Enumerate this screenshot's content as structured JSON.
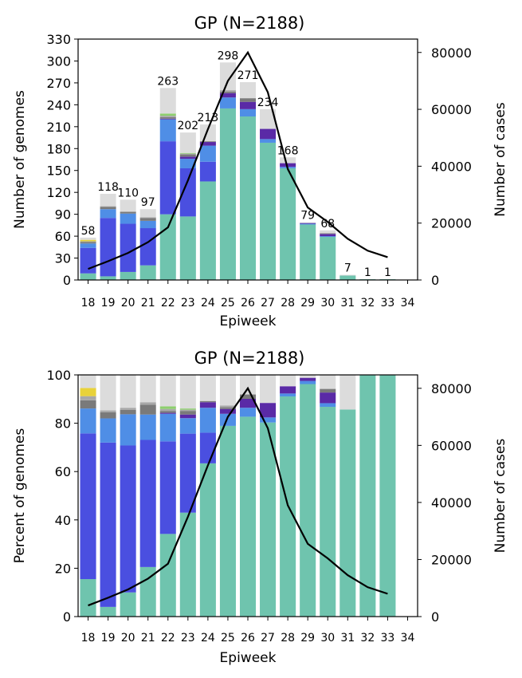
{
  "chart_data": [
    {
      "type": "bar",
      "stacked": true,
      "title": "GP (N=2188)",
      "xlabel": "Epiweek",
      "ylabel": "Number of genomes",
      "y2label": "Number of cases",
      "ylim": [
        0,
        330
      ],
      "y2lim": [
        0,
        84700
      ],
      "yticks": [
        0,
        30,
        60,
        90,
        120,
        150,
        180,
        210,
        240,
        270,
        300,
        330
      ],
      "y2ticks": [
        0,
        20000,
        40000,
        60000,
        80000
      ],
      "categories": [
        "18",
        "19",
        "20",
        "21",
        "22",
        "23",
        "24",
        "25",
        "26",
        "27",
        "28",
        "29",
        "30",
        "31",
        "32",
        "33",
        "34"
      ],
      "totals": [
        58,
        118,
        110,
        97,
        263,
        202,
        213,
        298,
        271,
        234,
        168,
        79,
        68,
        7,
        1,
        1,
        0
      ],
      "total_labels": [
        "58",
        "118",
        "110",
        "97",
        "263",
        "202",
        "213",
        "298",
        "271",
        "234",
        "168",
        "79",
        "68",
        "7",
        "1",
        "1",
        ""
      ],
      "series": [
        {
          "color": "#6fc4ae",
          "values": [
            9,
            5,
            11,
            20,
            90,
            87,
            135,
            235,
            224,
            188,
            153,
            76,
            59,
            6,
            1,
            1,
            0
          ]
        },
        {
          "color": "#4a4fe0",
          "values": [
            35,
            80,
            66,
            51,
            100,
            66,
            27,
            0,
            0,
            0,
            0,
            0,
            0,
            0,
            0,
            0,
            0
          ]
        },
        {
          "color": "#4f8ee6",
          "values": [
            6,
            12,
            14,
            10,
            30,
            13,
            22,
            15,
            10,
            5,
            2,
            1,
            1,
            0,
            0,
            0,
            0
          ]
        },
        {
          "color": "#5a2aa6",
          "values": [
            0,
            0,
            0,
            0,
            1,
            3,
            5,
            6,
            10,
            14,
            5,
            1,
            3,
            0,
            0,
            0,
            0
          ]
        },
        {
          "color": "#7a7a7a",
          "values": [
            2,
            3,
            2,
            4,
            2,
            3,
            1,
            2,
            5,
            0,
            0,
            0,
            1,
            0,
            0,
            0,
            0
          ]
        },
        {
          "color": "#a8a8a8",
          "values": [
            1,
            1,
            1,
            1,
            2,
            1,
            0,
            2,
            0,
            0,
            0,
            0,
            0,
            0,
            0,
            0,
            0
          ]
        },
        {
          "color": "#8ecf6f",
          "values": [
            0,
            0,
            0,
            0,
            3,
            1,
            0,
            0,
            0,
            0,
            0,
            0,
            0,
            0,
            0,
            0,
            0
          ]
        },
        {
          "color": "#e8d23a",
          "values": [
            2,
            0,
            0,
            0,
            0,
            0,
            0,
            0,
            0,
            0,
            0,
            0,
            0,
            0,
            0,
            0,
            0
          ]
        },
        {
          "color": "#dcdcdc",
          "values": [
            3,
            17,
            16,
            11,
            35,
            28,
            23,
            38,
            22,
            27,
            8,
            1,
            4,
            1,
            0,
            0,
            0
          ]
        }
      ],
      "cases": {
        "x": [
          "18",
          "19",
          "20",
          "21",
          "22",
          "23",
          "24",
          "25",
          "26",
          "27",
          "28",
          "29",
          "30",
          "31",
          "32",
          "33"
        ],
        "values": [
          3900,
          6600,
          9500,
          13300,
          18500,
          35000,
          53000,
          70000,
          80000,
          66000,
          39000,
          25500,
          20400,
          14500,
          10300,
          8000
        ]
      }
    },
    {
      "type": "bar",
      "stacked": true,
      "title": "GP (N=2188)",
      "xlabel": "Epiweek",
      "ylabel": "Percent of genomes",
      "y2label": "Number of cases",
      "ylim": [
        0,
        100
      ],
      "y2lim": [
        0,
        84700
      ],
      "yticks": [
        0,
        20,
        40,
        60,
        80,
        100
      ],
      "y2ticks": [
        0,
        20000,
        40000,
        60000,
        80000
      ],
      "categories": [
        "18",
        "19",
        "20",
        "21",
        "22",
        "23",
        "24",
        "25",
        "26",
        "27",
        "28",
        "29",
        "30",
        "31",
        "32",
        "33",
        "34"
      ],
      "series": [
        {
          "color": "#6fc4ae",
          "values": [
            15.5,
            4,
            10,
            20.5,
            34.2,
            43,
            63.4,
            78.9,
            82.7,
            80.3,
            91.1,
            96.2,
            86.8,
            85.7,
            100,
            100,
            0
          ]
        },
        {
          "color": "#4a4fe0",
          "values": [
            60.3,
            68,
            60.8,
            52.6,
            38.3,
            32.7,
            12.7,
            0,
            0,
            0,
            0,
            0,
            0,
            0,
            0,
            0,
            0
          ]
        },
        {
          "color": "#4f8ee6",
          "values": [
            10.3,
            10,
            12.9,
            10.5,
            11.4,
            6.4,
            10.3,
            5,
            3.7,
            2.1,
            1.2,
            1.3,
            1.5,
            0,
            0,
            0,
            0
          ]
        },
        {
          "color": "#5a2aa6",
          "values": [
            0,
            0,
            0,
            0,
            0.4,
            1.5,
            2.3,
            2,
            3.7,
            6,
            3,
            1.3,
            4.4,
            0,
            0,
            0,
            0
          ]
        },
        {
          "color": "#7a7a7a",
          "values": [
            3.4,
            2.5,
            1.8,
            4.1,
            0.8,
            1.5,
            0.5,
            0.7,
            1.8,
            0,
            0,
            0,
            1.5,
            0,
            0,
            0,
            0
          ]
        },
        {
          "color": "#a8a8a8",
          "values": [
            1.7,
            0.8,
            0.9,
            1,
            0.8,
            0.5,
            0,
            0.7,
            0,
            0,
            0,
            0,
            0,
            0,
            0,
            0,
            0
          ]
        },
        {
          "color": "#8ecf6f",
          "values": [
            0,
            0,
            0,
            0,
            1.1,
            0.5,
            0,
            0,
            0,
            0,
            0,
            0,
            0,
            0,
            0,
            0,
            0
          ]
        },
        {
          "color": "#e8d23a",
          "values": [
            3.4,
            0,
            0,
            0,
            0,
            0,
            0,
            0,
            0,
            0,
            0,
            0,
            0,
            0,
            0,
            0,
            0
          ]
        },
        {
          "color": "#dcdcdc",
          "values": [
            5.4,
            14.7,
            13.6,
            11.3,
            13,
            13.9,
            10.8,
            12.7,
            8.1,
            11.6,
            4.7,
            1.2,
            5.8,
            14.3,
            0,
            0,
            0
          ]
        }
      ],
      "cases": {
        "x": [
          "18",
          "19",
          "20",
          "21",
          "22",
          "23",
          "24",
          "25",
          "26",
          "27",
          "28",
          "29",
          "30",
          "31",
          "32",
          "33"
        ],
        "values": [
          3900,
          6600,
          9500,
          13300,
          18500,
          35000,
          53000,
          70000,
          80000,
          66000,
          39000,
          25500,
          20400,
          14500,
          10300,
          8000
        ]
      }
    }
  ]
}
